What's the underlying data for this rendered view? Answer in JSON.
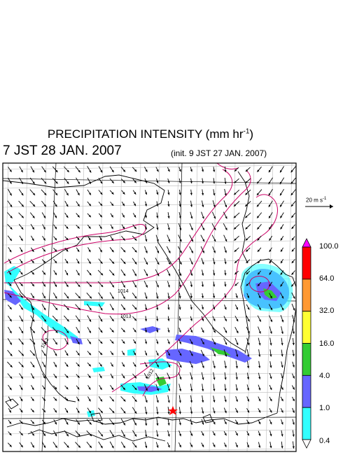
{
  "title": {
    "main": "PRECIPITATION INTENSITY (mm hr",
    "exp": "-1",
    "close": ")"
  },
  "valid_time": "7 JST 28 JAN. 2007",
  "init_time": "(init. 9 JST 27 JAN. 2007)",
  "wind_scale": {
    "value": "20 m s",
    "exp": "-1"
  },
  "colorbar": {
    "labels": [
      "100.0",
      "64.0",
      "32.0",
      "16.0",
      "4.0",
      "1.0",
      "0.4"
    ],
    "colors": [
      "#ff00ff",
      "#ff0000",
      "#ff9933",
      "#ffff33",
      "#33cc33",
      "#6666ff",
      "#33ffff",
      "#ffffff"
    ]
  },
  "isobar_labels": [
    "1014",
    "1013",
    "1012",
    "1012"
  ],
  "colors": {
    "isobar": "#cc0066",
    "coast": "#000000",
    "grid": "#bbbbbb",
    "marker": "#ff0000"
  }
}
